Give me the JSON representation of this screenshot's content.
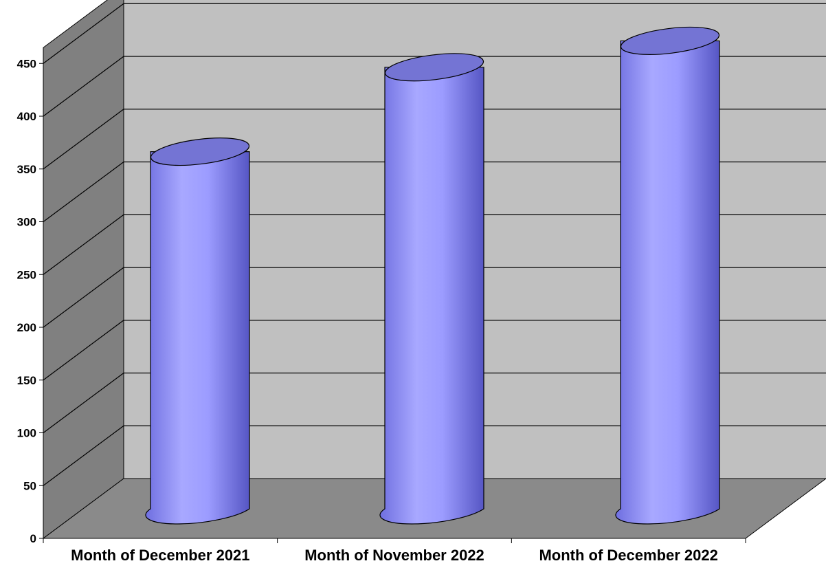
{
  "chart_data": {
    "type": "bar",
    "style": "3d-cylinder",
    "title": "",
    "xlabel": "",
    "ylabel": "",
    "categories": [
      "Month of December 2021",
      "Month of November 2022",
      "Month of December 2022"
    ],
    "series": [
      {
        "values": [
          340,
          420,
          445
        ]
      }
    ],
    "ylim": [
      0,
      450
    ],
    "yticks": [
      0,
      50,
      100,
      150,
      200,
      250,
      300,
      350,
      400,
      450
    ],
    "grid": true,
    "legend": "none",
    "colors": {
      "bar_side": "#9b9bff",
      "bar_top": "#7474d4",
      "back_wall": "#c0c0c0",
      "side_wall": "#808080",
      "floor": "#8a8a8a",
      "gridline": "#000000"
    }
  }
}
